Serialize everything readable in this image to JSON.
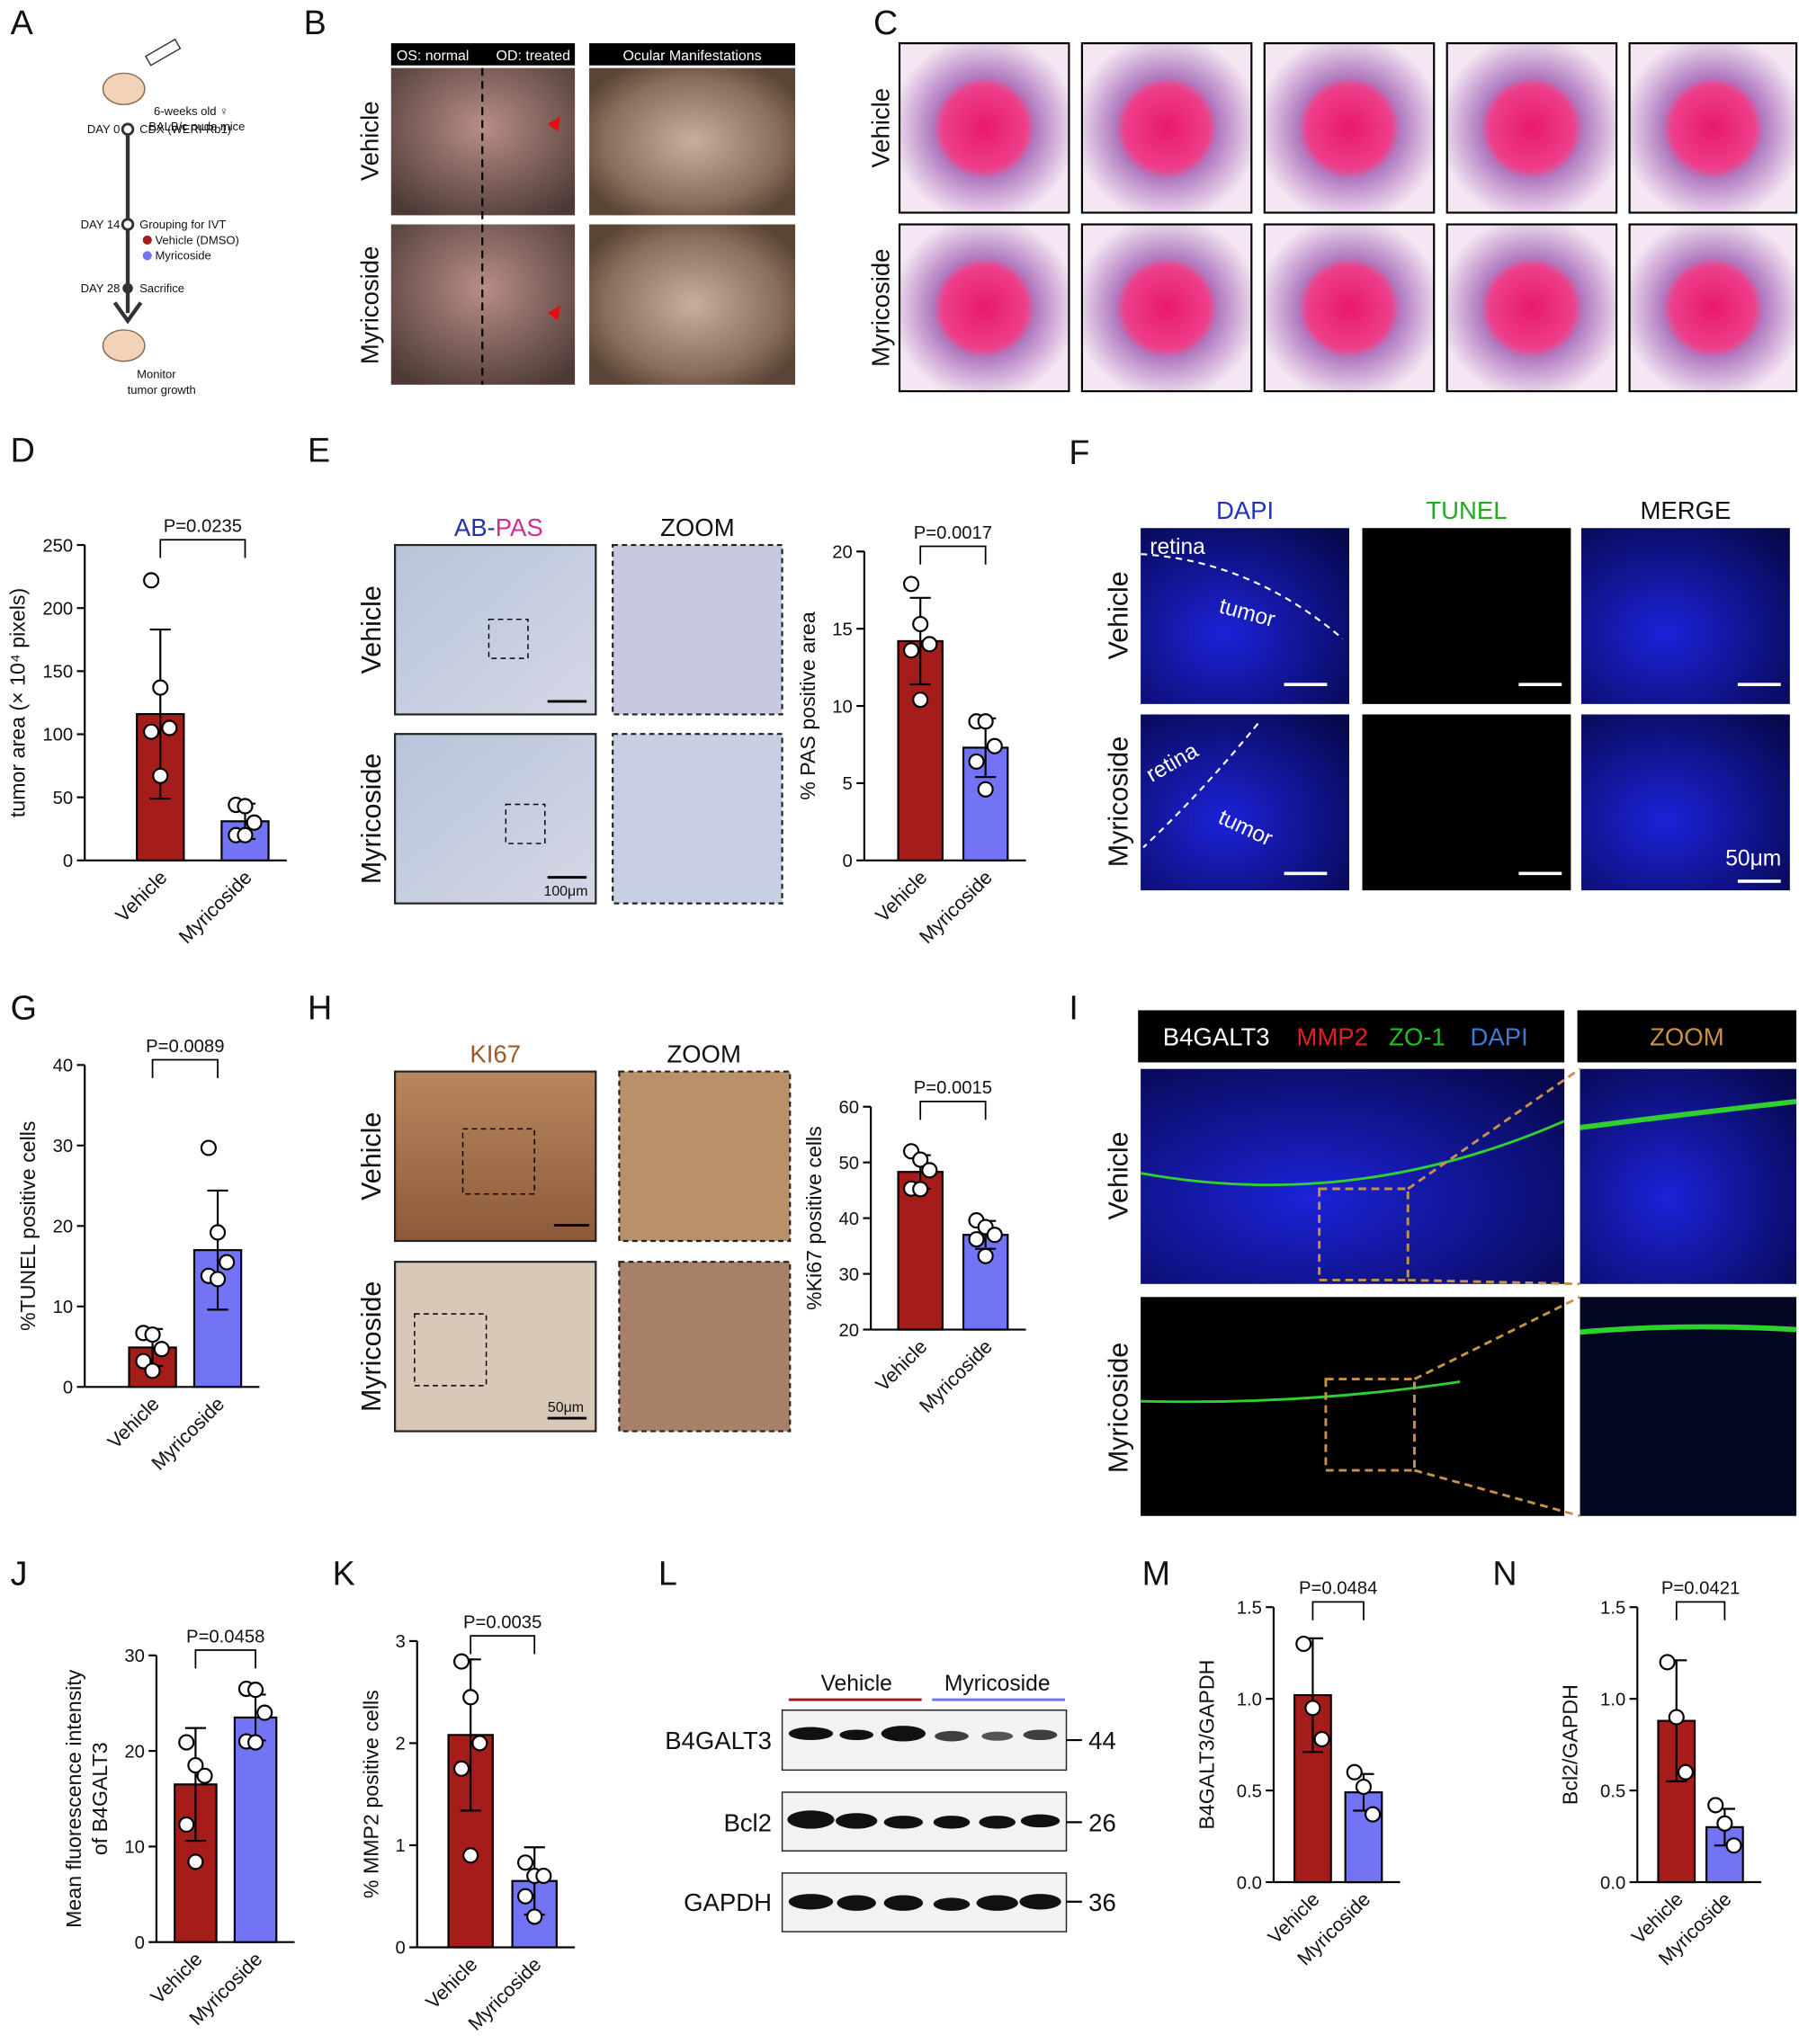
{
  "figure": {
    "panel_labels": [
      "A",
      "B",
      "C",
      "D",
      "E",
      "F",
      "G",
      "H",
      "I",
      "J",
      "K",
      "L",
      "M",
      "N"
    ],
    "a": {
      "mouse": "6-weeks old ♀",
      "strain": "BALB/c nude mice",
      "steps": [
        {
          "day": "DAY 0",
          "text": "CDX (WERI-Rb1)"
        },
        {
          "day": "DAY 14",
          "text": "Grouping for IVT"
        },
        {
          "day": "DAY 28",
          "text": "Sacrifice"
        }
      ],
      "groups": [
        "Vehicle (DMSO)",
        "Myricoside"
      ],
      "end": [
        "Monitor",
        "tumor growth"
      ]
    },
    "b": {
      "headers": [
        "OS: normal",
        "OD: treated",
        "Ocular Manifestations"
      ],
      "rows": [
        "Vehicle",
        "Myricoside"
      ]
    },
    "c": {
      "rows": [
        "Vehicle",
        "Myricoside"
      ]
    },
    "e": {
      "stain": [
        "AB-",
        "PAS"
      ],
      "zoom": "ZOOM",
      "rows": [
        "Vehicle",
        "Myricoside"
      ],
      "scale": "100μm"
    },
    "f": {
      "headers": [
        "DAPI",
        "TUNEL",
        "MERGE"
      ],
      "rows": [
        "Vehicle",
        "Myricoside"
      ],
      "regions": [
        [
          "retina",
          "tumor"
        ],
        [
          "retina",
          "tumor"
        ]
      ],
      "scale": "50μm"
    },
    "h": {
      "stain": "KI67",
      "zoom": "ZOOM",
      "rows": [
        "Vehicle",
        "Myricoside"
      ],
      "scale": "50μm"
    },
    "i": {
      "channels": [
        "B4GALT3",
        "MMP2",
        "ZO-1",
        "DAPI"
      ],
      "zoom": "ZOOM",
      "rows": [
        "Vehicle",
        "Myricoside"
      ]
    },
    "l": {
      "groups": [
        "Vehicle",
        "Myricoside"
      ],
      "proteins": [
        "B4GALT3",
        "Bcl2",
        "GAPDH"
      ],
      "sizes": [
        44,
        26,
        36
      ]
    }
  },
  "chart_data": [
    {
      "type": "bar",
      "ylabel": "tumor area (× 10⁴ pixels)",
      "categories": [
        "Vehicle",
        "Myricoside"
      ],
      "colors": [
        "#a51d1a",
        "#7373f5"
      ],
      "values": [
        116,
        31
      ],
      "errors": [
        67,
        14
      ],
      "points": [
        [
          222,
          137,
          105,
          102,
          67
        ],
        [
          44,
          43,
          30,
          20,
          20
        ]
      ],
      "ylim": [
        0,
        250
      ],
      "yticks": [
        0,
        50,
        100,
        150,
        200,
        250
      ],
      "annotation": "P=0.0235"
    },
    {
      "type": "bar",
      "ylabel": "% PAS positive area",
      "categories": [
        "Vehicle",
        "Myricoside"
      ],
      "colors": [
        "#a51d1a",
        "#7373f5"
      ],
      "values": [
        14.2,
        7.3
      ],
      "errors": [
        2.8,
        1.9
      ],
      "points": [
        [
          17.9,
          15.3,
          14.0,
          13.6,
          10.4
        ],
        [
          9.0,
          9.0,
          7.4,
          6.4,
          4.6
        ]
      ],
      "ylim": [
        0,
        20
      ],
      "yticks": [
        0,
        5,
        10,
        15,
        20
      ],
      "annotation": "P=0.0017"
    },
    {
      "type": "bar",
      "ylabel": "%TUNEL positive cells",
      "categories": [
        "Vehicle",
        "Myricoside"
      ],
      "colors": [
        "#a51d1a",
        "#7373f5"
      ],
      "values": [
        4.9,
        17
      ],
      "errors": [
        2.3,
        7.4
      ],
      "points": [
        [
          6.7,
          6.5,
          4.7,
          3.2,
          2.0
        ],
        [
          29.7,
          19.2,
          15.5,
          13.8,
          13.4
        ]
      ],
      "ylim": [
        0,
        40
      ],
      "yticks": [
        0,
        10,
        20,
        30,
        40
      ],
      "annotation": "P=0.0089"
    },
    {
      "type": "bar",
      "ylabel": "%Ki67 positive cells",
      "categories": [
        "Vehicle",
        "Myricoside"
      ],
      "colors": [
        "#a51d1a",
        "#7373f5"
      ],
      "values": [
        48.3,
        37
      ],
      "errors": [
        3,
        2.5
      ],
      "points": [
        [
          52,
          50.5,
          48.6,
          45.3,
          45.2
        ],
        [
          39.6,
          38.4,
          37,
          36.2,
          33.2
        ]
      ],
      "ylim": [
        20,
        60
      ],
      "yticks": [
        20,
        30,
        40,
        50,
        60
      ],
      "annotation": "P=0.0015"
    },
    {
      "type": "bar",
      "ylabel": [
        "Mean fluorescence intensity",
        "of B4GALT3"
      ],
      "categories": [
        "Vehicle",
        "Myricoside"
      ],
      "colors": [
        "#a51d1a",
        "#7373f5"
      ],
      "values": [
        16.5,
        23.5
      ],
      "errors": [
        5.9,
        2.4
      ],
      "points": [
        [
          20.9,
          18.5,
          17.4,
          12.3,
          8.4
        ],
        [
          26.5,
          26.4,
          24,
          21,
          20.9
        ]
      ],
      "ylim": [
        0,
        30
      ],
      "yticks": [
        0,
        10,
        20,
        30
      ],
      "annotation": "P=0.0458"
    },
    {
      "type": "bar",
      "ylabel": "% MMP2 positive cells",
      "categories": [
        "Vehicle",
        "Myricoside"
      ],
      "colors": [
        "#a51d1a",
        "#7373f5"
      ],
      "values": [
        2.08,
        0.65
      ],
      "errors": [
        0.74,
        0.33
      ],
      "points": [
        [
          2.8,
          2.45,
          2.0,
          1.75,
          0.9
        ],
        [
          0.83,
          0.7,
          0.7,
          0.5,
          0.3
        ]
      ],
      "ylim": [
        0,
        3
      ],
      "yticks": [
        0,
        1,
        2,
        3
      ],
      "annotation": "P=0.0035"
    },
    {
      "type": "bar",
      "ylabel": "B4GALT3/GAPDH",
      "categories": [
        "Vehicle",
        "Myricoside"
      ],
      "colors": [
        "#a51d1a",
        "#7373f5"
      ],
      "values": [
        1.02,
        0.49
      ],
      "errors": [
        0.31,
        0.1
      ],
      "points": [
        [
          1.3,
          0.95,
          0.78
        ],
        [
          0.6,
          0.52,
          0.37
        ]
      ],
      "ylim": [
        0,
        1.5
      ],
      "yticks": [
        {
          "value": 0,
          "label": "0.0"
        },
        0.5,
        {
          "value": 1,
          "label": "1.0"
        },
        1.5
      ],
      "annotation": "P=0.0484"
    },
    {
      "type": "bar",
      "ylabel": "Bcl2/GAPDH",
      "categories": [
        "Vehicle",
        "Myricoside"
      ],
      "colors": [
        "#a51d1a",
        "#7373f5"
      ],
      "values": [
        0.88,
        0.3
      ],
      "errors": [
        0.33,
        0.1
      ],
      "points": [
        [
          1.2,
          0.9,
          0.6
        ],
        [
          0.42,
          0.32,
          0.2
        ]
      ],
      "ylim": [
        0,
        1.5
      ],
      "yticks": [
        {
          "value": 0,
          "label": "0.0"
        },
        0.5,
        {
          "value": 1,
          "label": "1.0"
        },
        1.5
      ],
      "annotation": "P=0.0421"
    }
  ]
}
